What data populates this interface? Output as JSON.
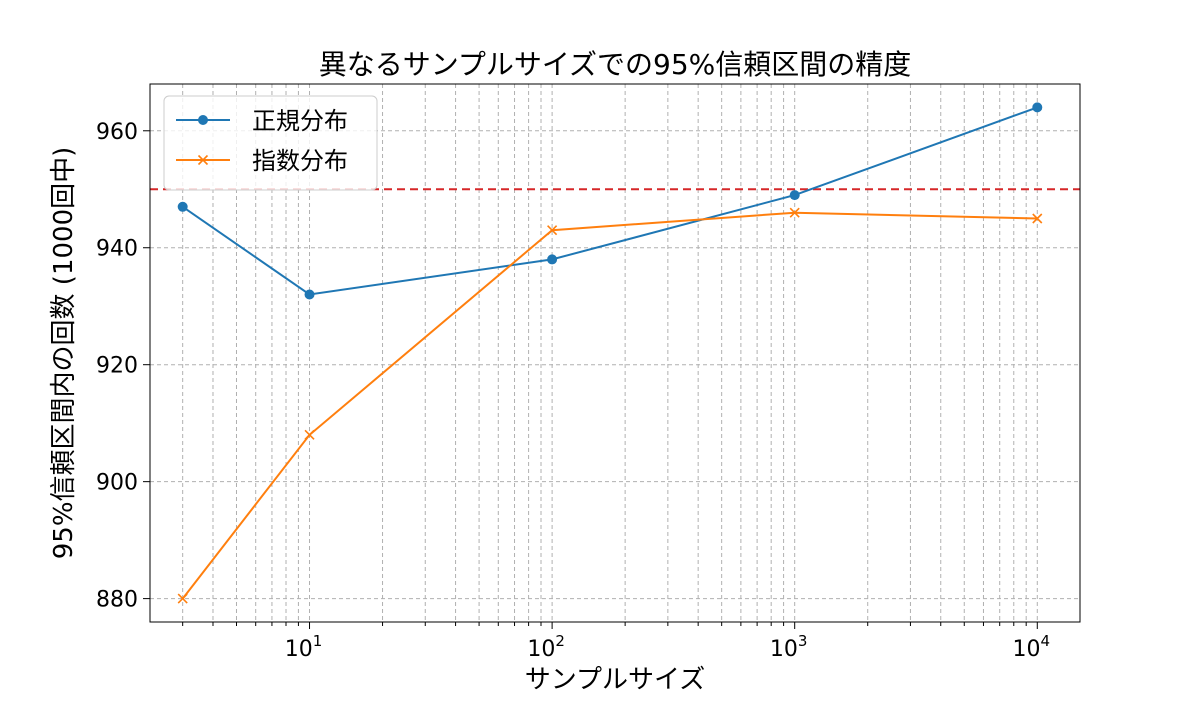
{
  "chart_data": {
    "type": "line",
    "title": "異なるサンプルサイズでの95%信頼区間の精度",
    "xlabel": "サンプルサイズ",
    "ylabel": "95%信頼区間内の回数 (1000回中)",
    "x_scale": "log",
    "xlim": [
      2.2,
      15000
    ],
    "ylim": [
      876,
      968
    ],
    "grid": true,
    "grid_minor": true,
    "legend_position": "top-left",
    "x_ticks": [
      {
        "value": 10,
        "base": "10",
        "exp": "1"
      },
      {
        "value": 100,
        "base": "10",
        "exp": "2"
      },
      {
        "value": 1000,
        "base": "10",
        "exp": "3"
      },
      {
        "value": 10000,
        "base": "10",
        "exp": "4"
      }
    ],
    "y_ticks": [
      880,
      900,
      920,
      940,
      960
    ],
    "x": [
      3,
      10,
      100,
      1000,
      10000
    ],
    "series": [
      {
        "name": "正規分布",
        "color": "#1f77b4",
        "marker": "circle",
        "values": [
          947,
          932,
          938,
          949,
          964
        ]
      },
      {
        "name": "指数分布",
        "color": "#ff7f0e",
        "marker": "x",
        "values": [
          880,
          908,
          943,
          946,
          945
        ]
      }
    ],
    "reference_line": {
      "y": 950,
      "color": "#d62728",
      "style": "dashed"
    }
  }
}
